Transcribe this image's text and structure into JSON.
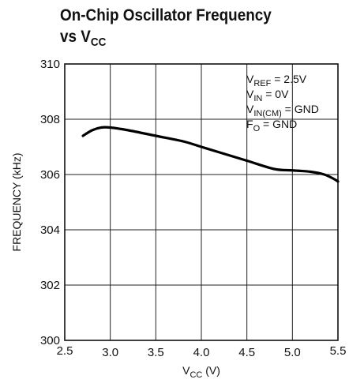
{
  "chart_data": {
    "type": "line",
    "title_line1": "On-Chip Oscillator Frequency",
    "title_line2_main": "vs V",
    "title_line2_sub": "CC",
    "xlabel_main": "V",
    "xlabel_sub": "CC",
    "xlabel_unit": " (V)",
    "ylabel": "FREQUENCY (kHz)",
    "xlim": [
      2.5,
      5.5
    ],
    "ylim": [
      300,
      310
    ],
    "xticks": [
      "2.5",
      "3.0",
      "3.5",
      "4.0",
      "4.5",
      "5.0",
      "5.5"
    ],
    "yticks": [
      "300",
      "302",
      "304",
      "306",
      "308",
      "310"
    ],
    "grid": true,
    "annotations": [
      {
        "main": "V",
        "sub": "REF",
        "rest": " = 2.5V"
      },
      {
        "main": "V",
        "sub": "IN",
        "rest": " = 0V"
      },
      {
        "main": "V",
        "sub": "IN(CM)",
        "rest": " = GND"
      },
      {
        "main": "F",
        "sub": "O",
        "rest": " = GND"
      }
    ],
    "series": [
      {
        "x": [
          2.7,
          2.8,
          2.9,
          3.0,
          3.2,
          3.5,
          3.8,
          4.0,
          4.2,
          4.5,
          4.8,
          5.0,
          5.2,
          5.35,
          5.45,
          5.5
        ],
        "values": [
          307.4,
          307.6,
          307.7,
          307.7,
          307.6,
          307.4,
          307.2,
          307.0,
          306.8,
          306.5,
          306.2,
          306.15,
          306.1,
          306.0,
          305.85,
          305.75
        ]
      }
    ]
  }
}
